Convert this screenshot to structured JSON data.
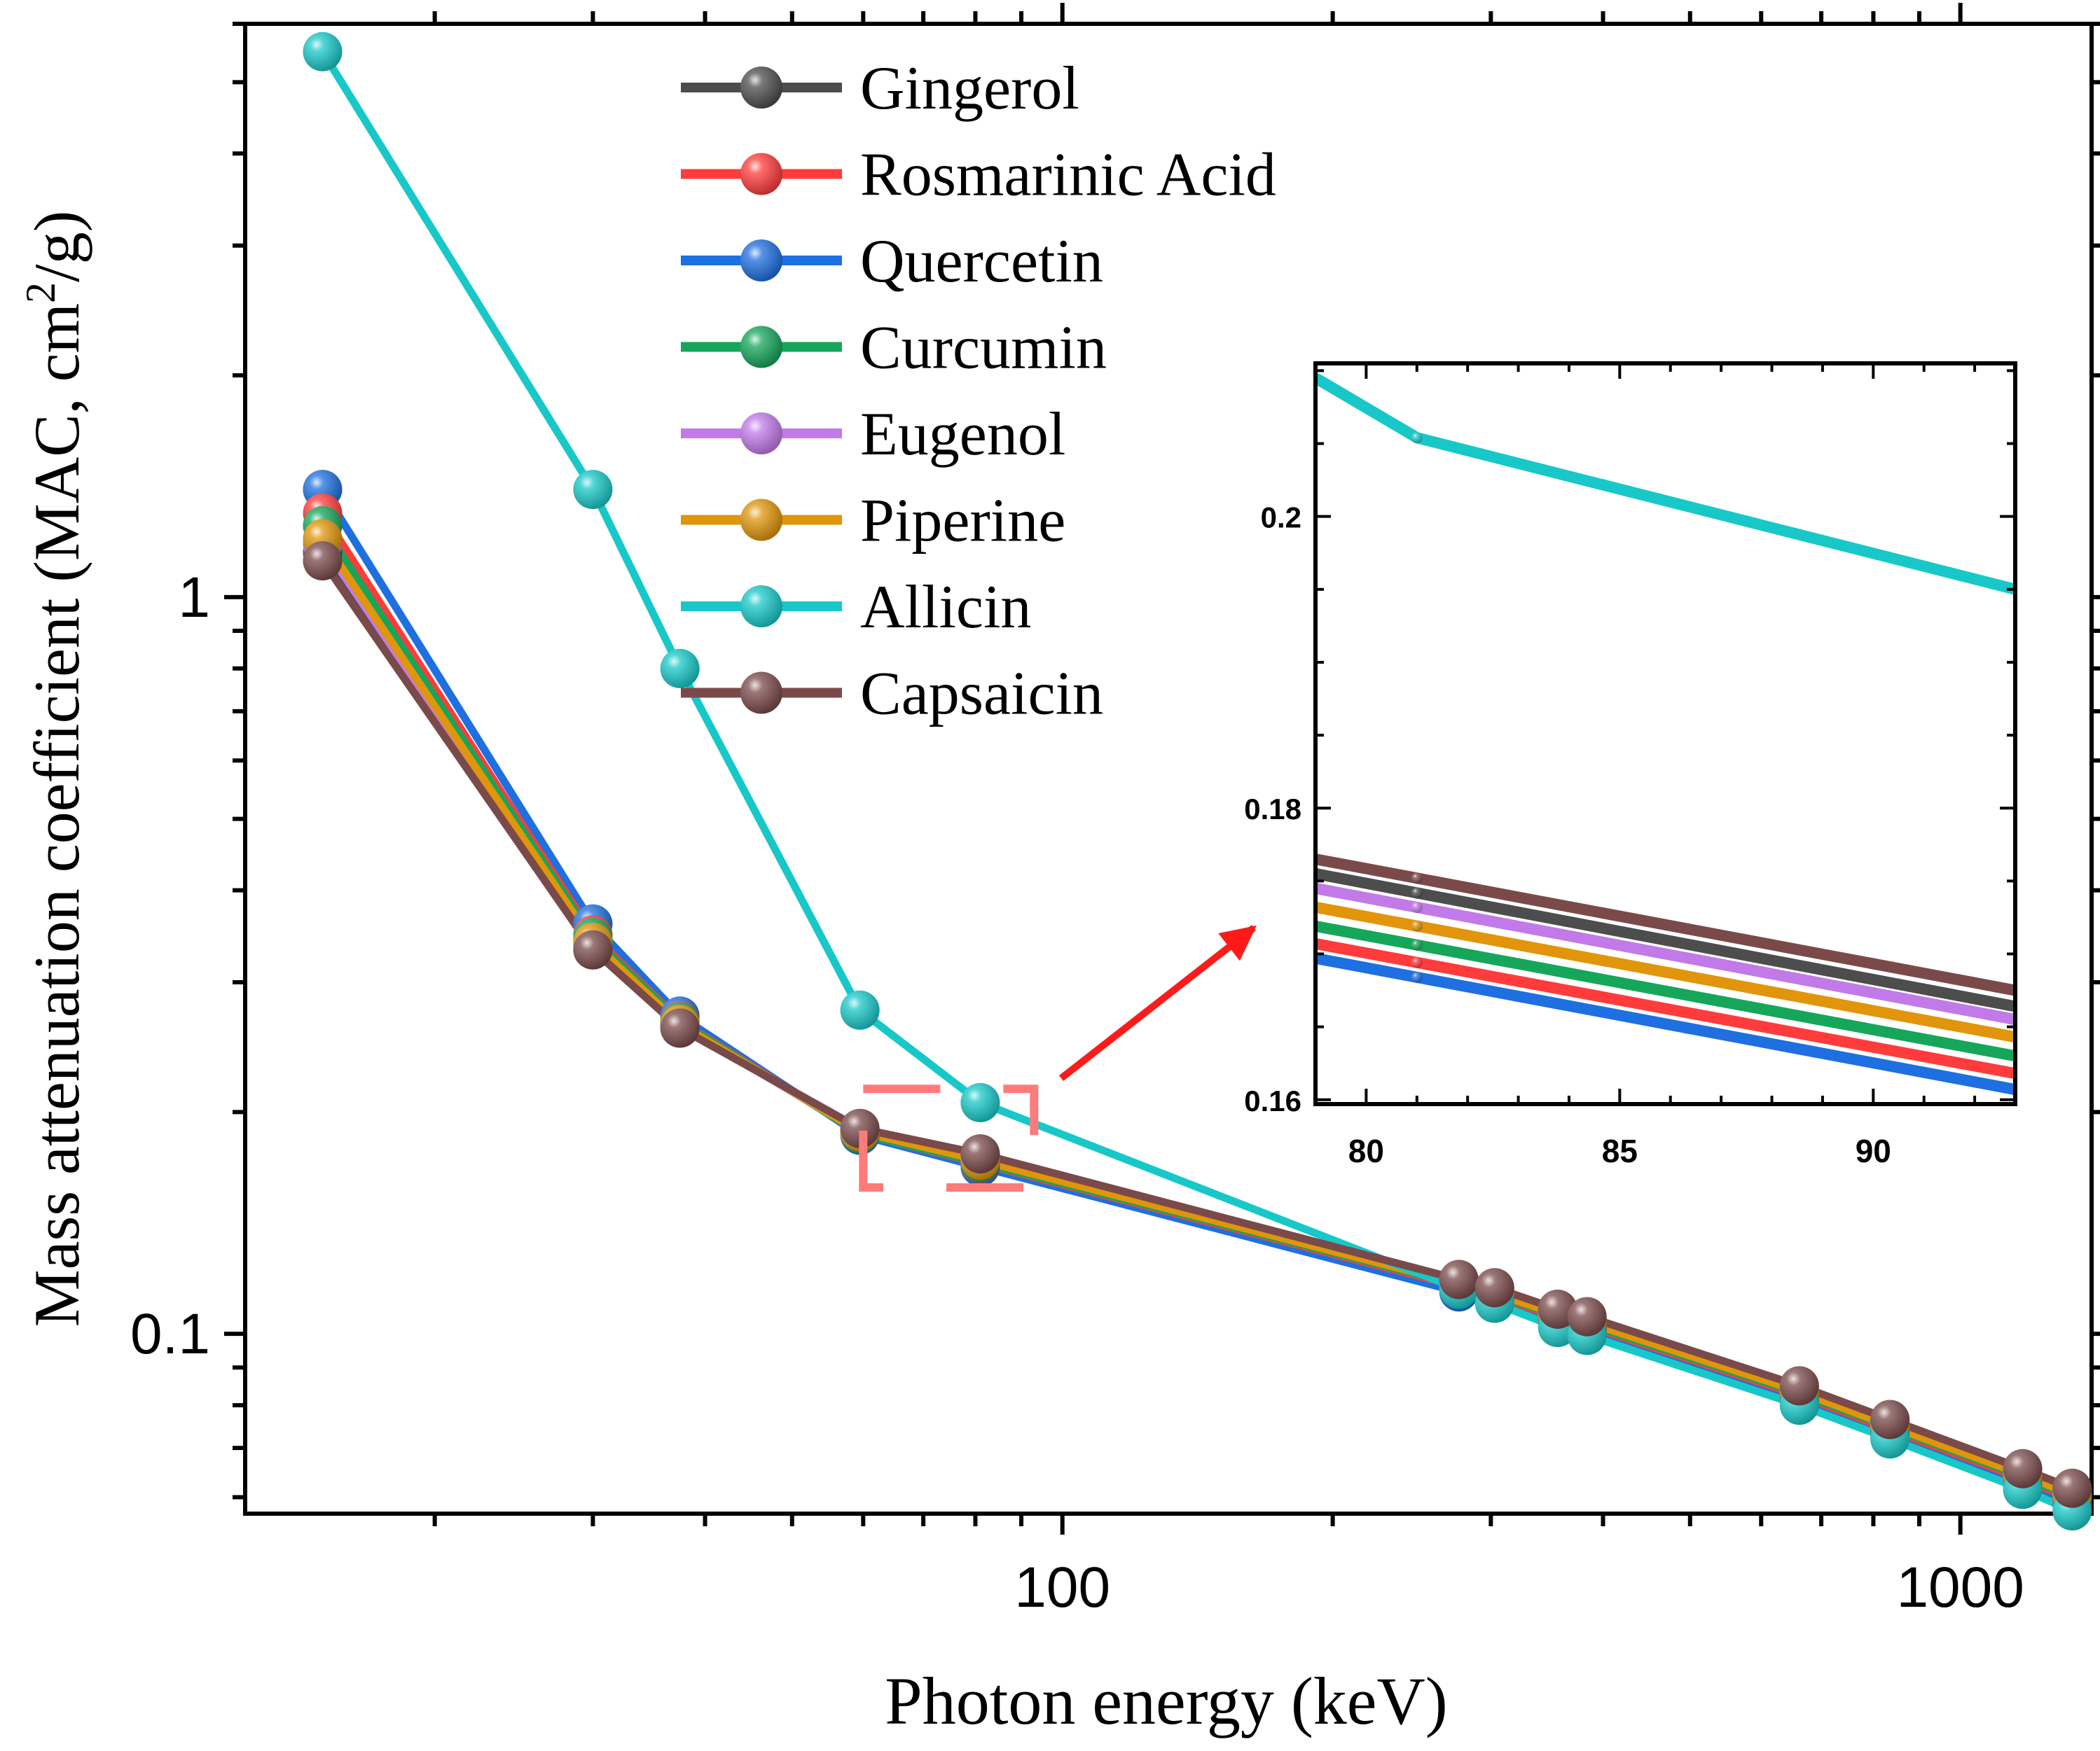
{
  "chart_data": {
    "type": "line",
    "xscale": "log",
    "yscale": "log",
    "xlabel": "Photon energy (keV)",
    "ylabel_main": "Mass attenuation coefficient (MAC, cm",
    "ylabel_sup": "2",
    "ylabel_tail": "/g)",
    "xlim": [
      12.3,
      1400
    ],
    "ylim": [
      0.057,
      6.0
    ],
    "x_tick_labels": [
      {
        "value": 100,
        "label": "100"
      },
      {
        "value": 1000,
        "label": "1000"
      }
    ],
    "y_tick_labels": [
      {
        "value": 0.1,
        "label": "0.1"
      },
      {
        "value": 1,
        "label": "1"
      }
    ],
    "x": [
      15,
      30,
      37.5,
      59.5,
      81,
      276.4,
      302.9,
      356,
      383.9,
      661.7,
      834.8,
      1173,
      1332
    ],
    "series": [
      {
        "name": "Gingerol",
        "color": "#4d4d4d",
        "values": [
          1.15,
          0.335,
          0.262,
          0.189,
          0.1745,
          0.118,
          0.115,
          0.1075,
          0.105,
          0.0845,
          0.076,
          0.0652,
          0.0613
        ]
      },
      {
        "name": "Rosmarinic Acid",
        "color": "#ff3b3b",
        "values": [
          1.3,
          0.348,
          0.266,
          0.187,
          0.1703,
          0.116,
          0.1125,
          0.1053,
          0.1025,
          0.0825,
          0.0741,
          0.0635,
          0.0596
        ]
      },
      {
        "name": "Quercetin",
        "color": "#1e6fe0",
        "values": [
          1.4,
          0.36,
          0.27,
          0.186,
          0.1685,
          0.114,
          0.111,
          0.1035,
          0.101,
          0.081,
          0.0728,
          0.0622,
          0.0585
        ]
      },
      {
        "name": "Curcumin",
        "color": "#16a65a",
        "values": [
          1.25,
          0.345,
          0.265,
          0.187,
          0.1708,
          0.1165,
          0.113,
          0.1058,
          0.103,
          0.083,
          0.0746,
          0.064,
          0.06
        ]
      },
      {
        "name": "Eugenol",
        "color": "#c27ae8",
        "values": [
          1.18,
          0.337,
          0.262,
          0.188,
          0.1728,
          0.1172,
          0.114,
          0.1068,
          0.1042,
          0.0839,
          0.0754,
          0.0647,
          0.0608
        ]
      },
      {
        "name": "Piperine",
        "color": "#e0950a",
        "values": [
          1.2,
          0.34,
          0.263,
          0.188,
          0.172,
          0.117,
          0.1135,
          0.1063,
          0.1037,
          0.0835,
          0.075,
          0.0644,
          0.0604
        ]
      },
      {
        "name": "Allicin",
        "color": "#18c8c8",
        "values": [
          5.5,
          1.4,
          0.8,
          0.275,
          0.206,
          0.115,
          0.11,
          0.102,
          0.0995,
          0.08,
          0.072,
          0.0615,
          0.0575
        ]
      },
      {
        "name": "Capsaicin",
        "color": "#7a4a4a",
        "values": [
          1.12,
          0.332,
          0.26,
          0.19,
          0.1755,
          0.1185,
          0.1155,
          0.108,
          0.1055,
          0.085,
          0.0765,
          0.0656,
          0.0617
        ]
      }
    ],
    "legend": {
      "placement": "top-center"
    },
    "zoom_region": {
      "xlim": [
        60,
        93
      ],
      "ylim": [
        0.158,
        0.215
      ]
    },
    "inset": {
      "xlim": [
        79,
        92.8
      ],
      "ylim": [
        0.1597,
        0.2105
      ],
      "x_tick_labels": [
        {
          "value": 80,
          "label": "80"
        },
        {
          "value": 85,
          "label": "85"
        },
        {
          "value": 90,
          "label": "90"
        }
      ],
      "y_tick_labels": [
        {
          "value": 0.16,
          "label": "0.16"
        },
        {
          "value": 0.18,
          "label": "0.18"
        },
        {
          "value": 0.2,
          "label": "0.2"
        }
      ],
      "series": [
        {
          "name": "Quercetin",
          "start": 0.1697,
          "end": 0.1607
        },
        {
          "name": "Rosmarinic Acid",
          "start": 0.1707,
          "end": 0.1618
        },
        {
          "name": "Curcumin",
          "start": 0.1719,
          "end": 0.163
        },
        {
          "name": "Piperine",
          "start": 0.1732,
          "end": 0.1643
        },
        {
          "name": "Eugenol",
          "start": 0.1745,
          "end": 0.1655
        },
        {
          "name": "Gingerol",
          "start": 0.1755,
          "end": 0.1664
        },
        {
          "name": "Capsaicin",
          "start": 0.1765,
          "end": 0.1675
        },
        {
          "name": "Allicin",
          "start": 0.2095,
          "end": 0.195,
          "kink_x": 81,
          "kink_y": 0.2054
        }
      ]
    }
  }
}
